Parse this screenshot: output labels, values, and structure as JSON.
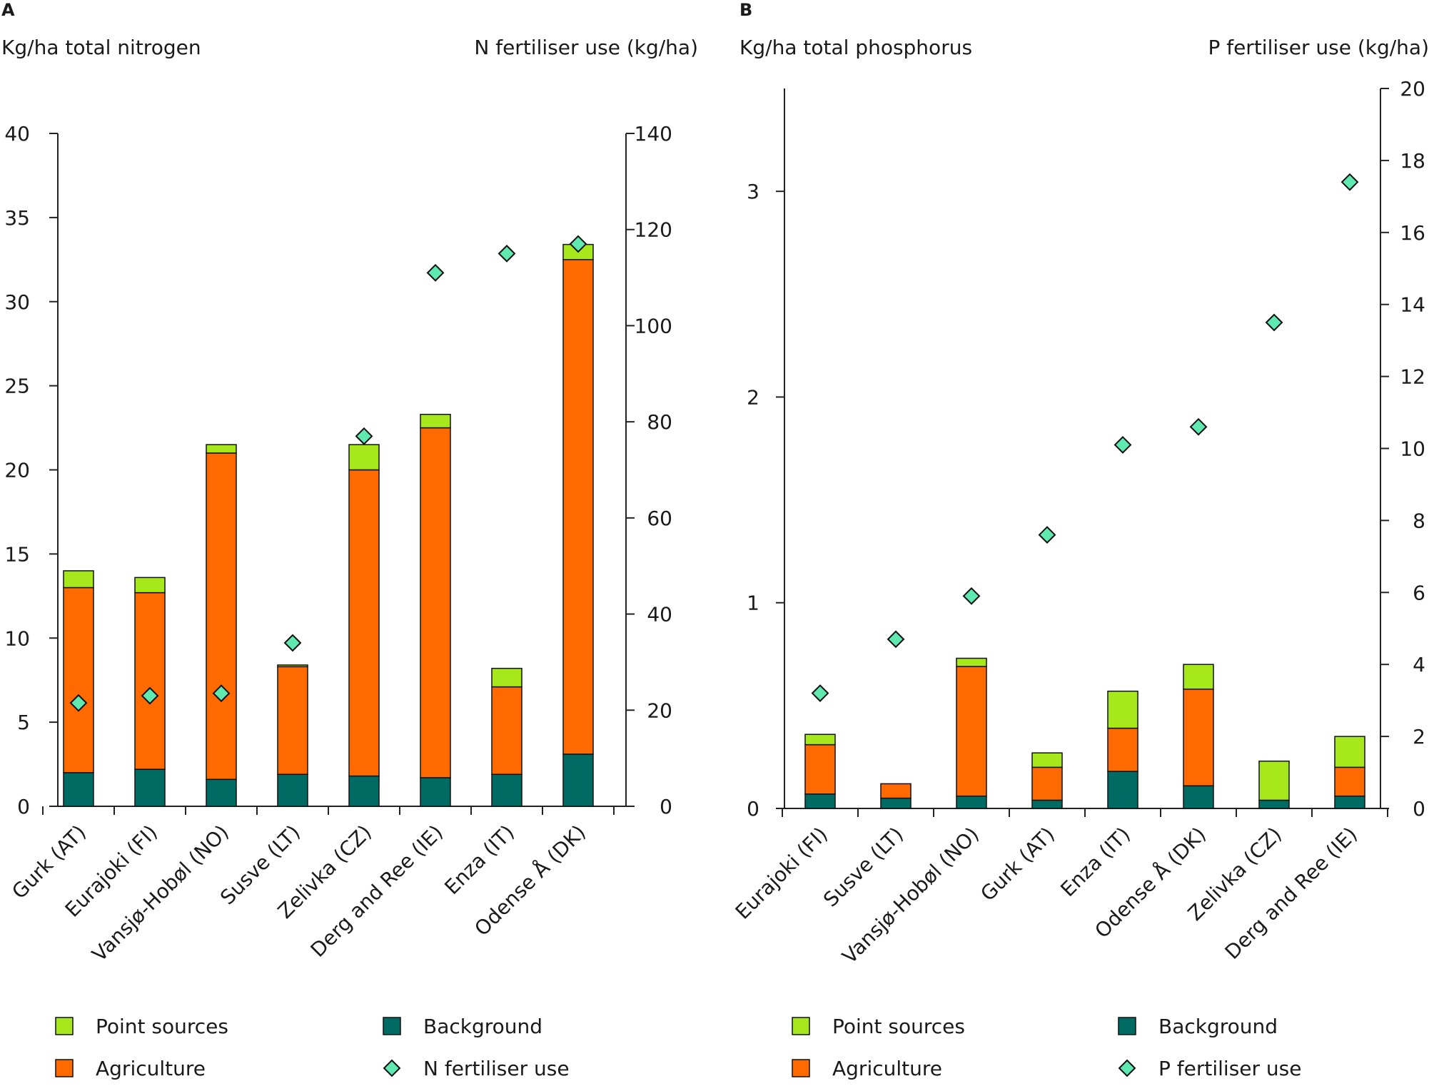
{
  "chart_data": [
    {
      "type": "bar",
      "stacked": true,
      "panel_label": "A",
      "ylabel_left": "Kg/ha total nitrogen",
      "ylabel_right": "N fertiliser use (kg/ha)",
      "ylim_left": [
        0,
        40
      ],
      "ylim_right": [
        0,
        140
      ],
      "yticks_left": [
        "0",
        "5",
        "10",
        "15",
        "20",
        "25",
        "30",
        "35",
        "40"
      ],
      "yticks_right": [
        "0",
        "20",
        "40",
        "60",
        "80",
        "100",
        "120",
        "140"
      ],
      "grid": false,
      "categories": [
        "Gurk (AT)",
        "Eurajoki (FI)",
        "Vansjø-Hobøl (NO)",
        "Susve (LT)",
        "Zelivka (CZ)",
        "Derg and Ree (IE)",
        "Enza (IT)",
        "Odense Å (DK)"
      ],
      "series": [
        {
          "name": "Background",
          "color": "#006b62",
          "values": [
            2.0,
            2.2,
            1.6,
            1.9,
            1.8,
            1.7,
            1.9,
            3.1
          ]
        },
        {
          "name": "Agriculture",
          "color": "#ff6a00",
          "values": [
            11.0,
            10.5,
            19.4,
            6.4,
            18.2,
            20.8,
            5.2,
            29.4
          ]
        },
        {
          "name": "Point sources",
          "color": "#a6e81c",
          "values": [
            1.0,
            0.9,
            0.5,
            0.1,
            1.5,
            0.8,
            1.1,
            0.9
          ]
        }
      ],
      "scatter": {
        "name": "N fertiliser use",
        "color": "#5fe8b0",
        "axis": "right",
        "values": [
          21.5,
          23,
          23.5,
          34,
          77,
          111,
          115,
          117
        ]
      },
      "legend": [
        {
          "name": "Point sources",
          "color": "#a6e81c",
          "marker": "square"
        },
        {
          "name": "Background",
          "color": "#006b62",
          "marker": "square"
        },
        {
          "name": "Agriculture",
          "color": "#ff6a00",
          "marker": "square"
        },
        {
          "name": "N fertiliser use",
          "color": "#5fe8b0",
          "marker": "diamond"
        }
      ],
      "legend_position": "bottom"
    },
    {
      "type": "bar",
      "stacked": true,
      "panel_label": "B",
      "ylabel_left": "Kg/ha total phosphorus",
      "ylabel_right": "P fertiliser use (kg/ha)",
      "ylim_left": [
        0,
        3.5
      ],
      "ylim_right": [
        0,
        20
      ],
      "yticks_left": [
        "0",
        "1",
        "2",
        "3"
      ],
      "yticks_right": [
        "0",
        "2",
        "4",
        "6",
        "8",
        "10",
        "12",
        "14",
        "16",
        "18",
        "20"
      ],
      "grid": false,
      "categories": [
        "Eurajoki (FI)",
        "Susve (LT)",
        "Vansjø-Hobøl (NO)",
        "Gurk (AT)",
        "Enza (IT)",
        "Odense Å (DK)",
        "Zelivka (CZ)",
        "Derg and Ree (IE)"
      ],
      "series": [
        {
          "name": "Background",
          "color": "#006b62",
          "values": [
            0.07,
            0.05,
            0.06,
            0.04,
            0.18,
            0.11,
            0.04,
            0.06
          ]
        },
        {
          "name": "Agriculture",
          "color": "#ff6a00",
          "values": [
            0.24,
            0.07,
            0.63,
            0.16,
            0.21,
            0.47,
            0.0,
            0.14
          ]
        },
        {
          "name": "Point sources",
          "color": "#a6e81c",
          "values": [
            0.05,
            0.0,
            0.04,
            0.07,
            0.18,
            0.12,
            0.19,
            0.15
          ]
        }
      ],
      "scatter": {
        "name": "P fertiliser use",
        "color": "#5fe8b0",
        "axis": "right",
        "values": [
          3.2,
          4.7,
          5.9,
          7.6,
          10.1,
          10.6,
          13.5,
          17.4
        ]
      },
      "legend": [
        {
          "name": "Point sources",
          "color": "#a6e81c",
          "marker": "square"
        },
        {
          "name": "Background",
          "color": "#006b62",
          "marker": "square"
        },
        {
          "name": "Agriculture",
          "color": "#ff6a00",
          "marker": "square"
        },
        {
          "name": "P fertiliser use",
          "color": "#5fe8b0",
          "marker": "diamond"
        }
      ],
      "legend_position": "bottom"
    }
  ]
}
